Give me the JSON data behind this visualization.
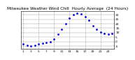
{
  "title": "Milwaukee Weather Wind Chill  Hourly Average  (24 Hours)",
  "hours": [
    1,
    2,
    3,
    4,
    5,
    6,
    7,
    8,
    9,
    10,
    11,
    12,
    13,
    14,
    15,
    16,
    17,
    18,
    19,
    20,
    21,
    22,
    23,
    24
  ],
  "values": [
    -3,
    -4,
    -5,
    -4,
    -3,
    -2,
    -1,
    0,
    3,
    8,
    14,
    20,
    26,
    30,
    32,
    31,
    28,
    24,
    18,
    14,
    11,
    9,
    8,
    9
  ],
  "ylim": [
    -8,
    34
  ],
  "yticks": [
    -5,
    0,
    5,
    10,
    15,
    20,
    25,
    30
  ],
  "ytick_labels": [
    "-5",
    "0",
    "5",
    "10",
    "15",
    "20",
    "25",
    "30"
  ],
  "vgrid_positions": [
    1,
    5,
    9,
    13,
    17,
    21
  ],
  "dot_color": "#0000dd",
  "bg_color": "#ffffff",
  "grid_color": "#999999",
  "title_color": "#000000",
  "title_fontsize": 4.2,
  "tick_fontsize": 3.2,
  "markersize": 1.0
}
